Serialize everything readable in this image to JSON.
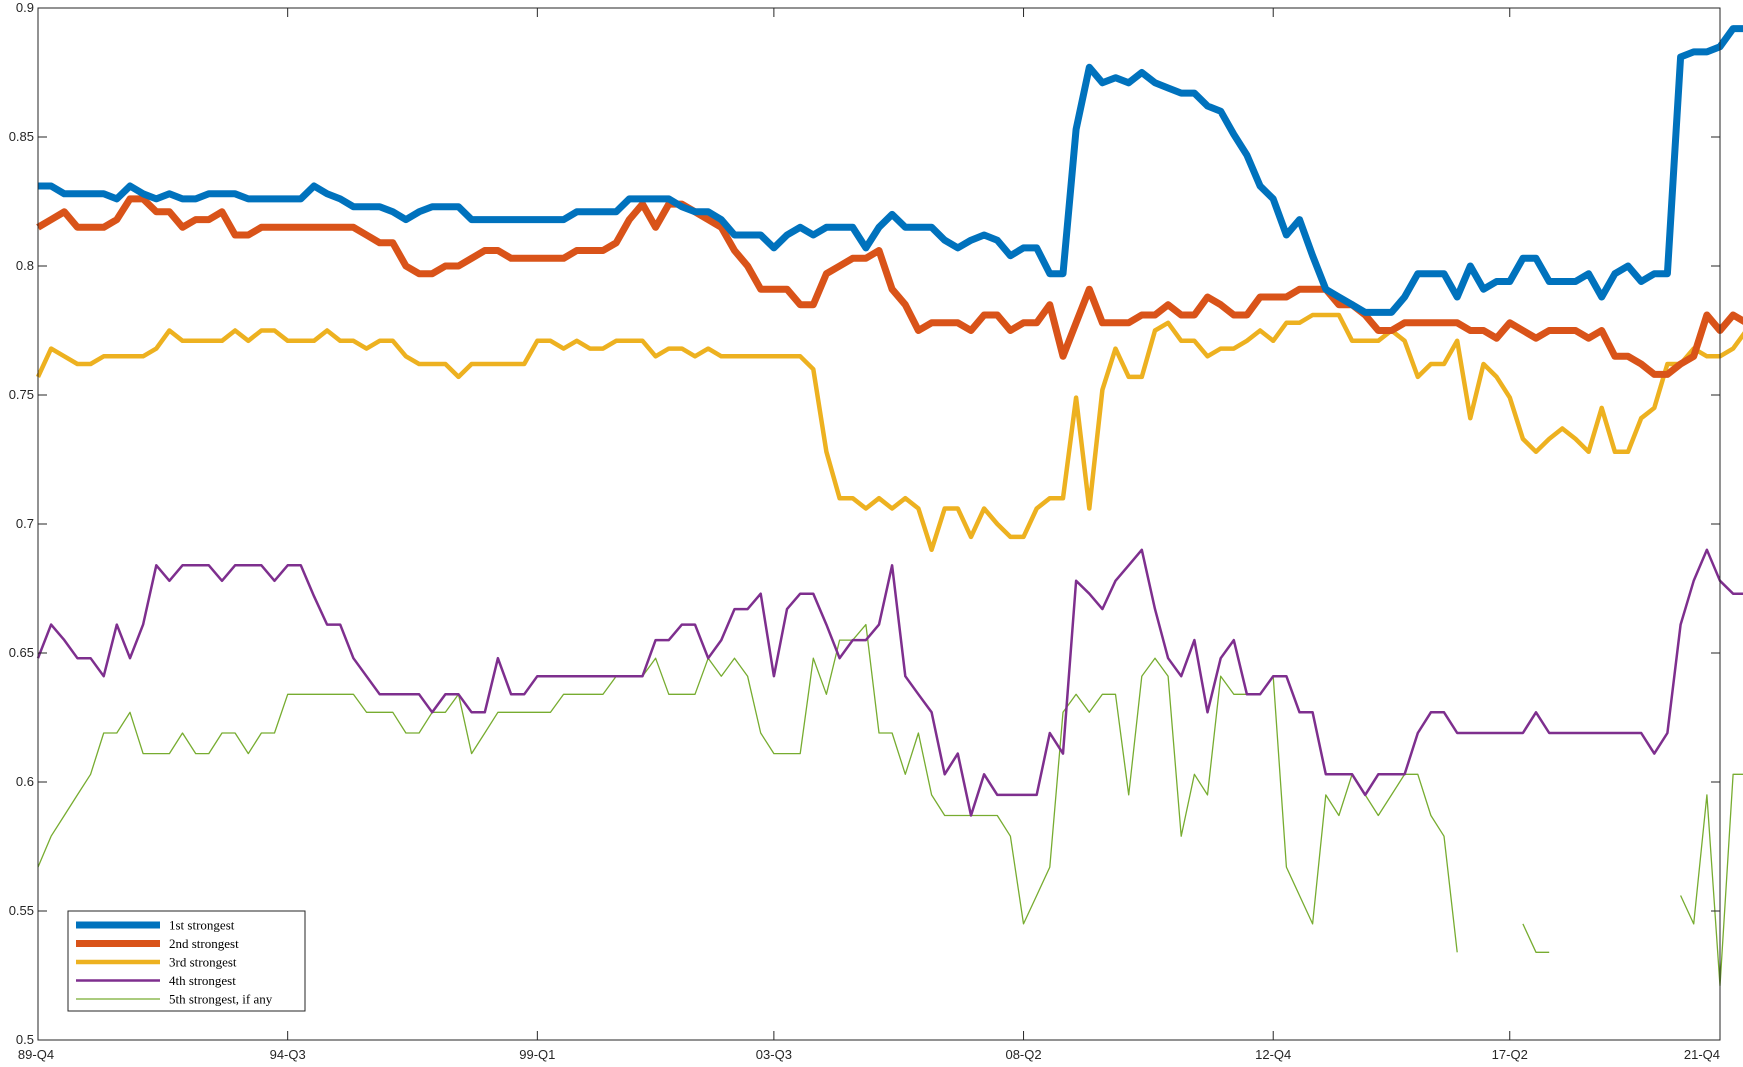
{
  "chart_data": {
    "type": "line",
    "title": "",
    "xlabel": "",
    "ylabel": "",
    "ylim": [
      0.5,
      0.9
    ],
    "yticks": [
      0.5,
      0.55,
      0.6,
      0.65,
      0.7,
      0.75,
      0.8,
      0.85,
      0.9
    ],
    "ytick_labels": [
      "0.5",
      "0.55",
      "0.6",
      "0.65",
      "0.7",
      "0.75",
      "0.8",
      "0.85",
      "0.9"
    ],
    "xlim": [
      0,
      128
    ],
    "xticks": [
      0,
      19,
      38,
      56,
      75,
      94,
      112,
      128
    ],
    "xtick_labels": [
      "89-Q4",
      "94-Q3",
      "99-Q1",
      "03-Q3",
      "08-Q2",
      "12-Q4",
      "17-Q2",
      "21-Q4"
    ],
    "grid": false,
    "legend_position": "bottom-left",
    "series": [
      {
        "name": "1st strongest",
        "color": "#0072BD",
        "width": "thick",
        "values": [
          0.831,
          0.831,
          0.828,
          0.828,
          0.828,
          0.828,
          0.826,
          0.831,
          0.828,
          0.826,
          0.828,
          0.826,
          0.826,
          0.828,
          0.828,
          0.828,
          0.826,
          0.826,
          0.826,
          0.826,
          0.826,
          0.831,
          0.828,
          0.826,
          0.823,
          0.823,
          0.823,
          0.821,
          0.818,
          0.821,
          0.823,
          0.823,
          0.823,
          0.818,
          0.818,
          0.818,
          0.818,
          0.818,
          0.818,
          0.818,
          0.818,
          0.821,
          0.821,
          0.821,
          0.821,
          0.826,
          0.826,
          0.826,
          0.826,
          0.823,
          0.821,
          0.821,
          0.818,
          0.812,
          0.812,
          0.812,
          0.807,
          0.812,
          0.815,
          0.812,
          0.815,
          0.815,
          0.815,
          0.807,
          0.815,
          0.82,
          0.815,
          0.815,
          0.815,
          0.81,
          0.807,
          0.81,
          0.812,
          0.81,
          0.804,
          0.807,
          0.807,
          0.797,
          0.797,
          0.853,
          0.877,
          0.871,
          0.873,
          0.871,
          0.875,
          0.871,
          0.869,
          0.867,
          0.867,
          0.862,
          0.86,
          0.851,
          0.843,
          0.831,
          0.826,
          0.812,
          0.818,
          0.804,
          0.791,
          0.788,
          0.785,
          0.782,
          0.782,
          0.782,
          0.788,
          0.797,
          0.797,
          0.797,
          0.788,
          0.8,
          0.791,
          0.794,
          0.794,
          0.803,
          0.803,
          0.794,
          0.794,
          0.794,
          0.797,
          0.788,
          0.797,
          0.8,
          0.794,
          0.797,
          0.797,
          0.881,
          0.883,
          0.883,
          0.885,
          0.892,
          0.892,
          0.892
        ]
      },
      {
        "name": "2nd strongest",
        "color": "#D95319",
        "width": "thick",
        "values": [
          0.815,
          0.818,
          0.821,
          0.815,
          0.815,
          0.815,
          0.818,
          0.826,
          0.826,
          0.821,
          0.821,
          0.815,
          0.818,
          0.818,
          0.821,
          0.812,
          0.812,
          0.815,
          0.815,
          0.815,
          0.815,
          0.815,
          0.815,
          0.815,
          0.815,
          0.812,
          0.809,
          0.809,
          0.8,
          0.797,
          0.797,
          0.8,
          0.8,
          0.803,
          0.806,
          0.806,
          0.803,
          0.803,
          0.803,
          0.803,
          0.803,
          0.806,
          0.806,
          0.806,
          0.809,
          0.818,
          0.824,
          0.815,
          0.824,
          0.824,
          0.821,
          0.818,
          0.815,
          0.806,
          0.8,
          0.791,
          0.791,
          0.791,
          0.785,
          0.785,
          0.797,
          0.8,
          0.803,
          0.803,
          0.806,
          0.791,
          0.785,
          0.775,
          0.778,
          0.778,
          0.778,
          0.775,
          0.781,
          0.781,
          0.775,
          0.778,
          0.778,
          0.785,
          0.765,
          0.778,
          0.791,
          0.778,
          0.778,
          0.778,
          0.781,
          0.781,
          0.785,
          0.781,
          0.781,
          0.788,
          0.785,
          0.781,
          0.781,
          0.788,
          0.788,
          0.788,
          0.791,
          0.791,
          0.791,
          0.785,
          0.785,
          0.781,
          0.775,
          0.775,
          0.778,
          0.778,
          0.778,
          0.778,
          0.778,
          0.775,
          0.775,
          0.772,
          0.778,
          0.775,
          0.772,
          0.775,
          0.775,
          0.775,
          0.772,
          0.775,
          0.765,
          0.765,
          0.762,
          0.758,
          0.758,
          0.762,
          0.765,
          0.781,
          0.775,
          0.781,
          0.778,
          0.778,
          0.778
        ]
      },
      {
        "name": "3rd strongest",
        "color": "#EDB120",
        "width": "medium",
        "values": [
          0.757,
          0.768,
          0.765,
          0.762,
          0.762,
          0.765,
          0.765,
          0.765,
          0.765,
          0.768,
          0.775,
          0.771,
          0.771,
          0.771,
          0.771,
          0.775,
          0.771,
          0.775,
          0.775,
          0.771,
          0.771,
          0.771,
          0.775,
          0.771,
          0.771,
          0.768,
          0.771,
          0.771,
          0.765,
          0.762,
          0.762,
          0.762,
          0.757,
          0.762,
          0.762,
          0.762,
          0.762,
          0.762,
          0.771,
          0.771,
          0.768,
          0.771,
          0.768,
          0.768,
          0.771,
          0.771,
          0.771,
          0.765,
          0.768,
          0.768,
          0.765,
          0.768,
          0.765,
          0.765,
          0.765,
          0.765,
          0.765,
          0.765,
          0.765,
          0.76,
          0.728,
          0.71,
          0.71,
          0.706,
          0.71,
          0.706,
          0.71,
          0.706,
          0.69,
          0.706,
          0.706,
          0.695,
          0.706,
          0.7,
          0.695,
          0.695,
          0.706,
          0.71,
          0.71,
          0.749,
          0.706,
          0.752,
          0.768,
          0.757,
          0.757,
          0.775,
          0.778,
          0.771,
          0.771,
          0.765,
          0.768,
          0.768,
          0.771,
          0.775,
          0.771,
          0.778,
          0.778,
          0.781,
          0.781,
          0.781,
          0.771,
          0.771,
          0.771,
          0.775,
          0.771,
          0.757,
          0.762,
          0.762,
          0.771,
          0.741,
          0.762,
          0.757,
          0.749,
          0.733,
          0.728,
          0.733,
          0.737,
          0.733,
          0.728,
          0.745,
          0.728,
          0.728,
          0.741,
          0.745,
          0.762,
          0.762,
          0.768,
          0.765,
          0.765,
          0.768,
          0.775,
          0.775
        ]
      },
      {
        "name": "4th strongest",
        "color": "#7E2F8E",
        "width": "thin",
        "values": [
          0.648,
          0.661,
          0.655,
          0.648,
          0.648,
          0.641,
          0.661,
          0.648,
          0.661,
          0.684,
          0.678,
          0.684,
          0.684,
          0.684,
          0.678,
          0.684,
          0.684,
          0.684,
          0.678,
          0.684,
          0.684,
          0.672,
          0.661,
          0.661,
          0.648,
          0.641,
          0.634,
          0.634,
          0.634,
          0.634,
          0.627,
          0.634,
          0.634,
          0.627,
          0.627,
          0.648,
          0.634,
          0.634,
          0.641,
          0.641,
          0.641,
          0.641,
          0.641,
          0.641,
          0.641,
          0.641,
          0.641,
          0.655,
          0.655,
          0.661,
          0.661,
          0.648,
          0.655,
          0.667,
          0.667,
          0.673,
          0.641,
          0.667,
          0.673,
          0.673,
          0.661,
          0.648,
          0.655,
          0.655,
          0.661,
          0.684,
          0.641,
          0.634,
          0.627,
          0.603,
          0.611,
          0.587,
          0.603,
          0.595,
          0.595,
          0.595,
          0.595,
          0.619,
          0.611,
          0.678,
          0.673,
          0.667,
          0.678,
          0.684,
          0.69,
          0.667,
          0.648,
          0.641,
          0.655,
          0.627,
          0.648,
          0.655,
          0.634,
          0.634,
          0.641,
          0.641,
          0.627,
          0.627,
          0.603,
          0.603,
          0.603,
          0.595,
          0.603,
          0.603,
          0.603,
          0.619,
          0.627,
          0.627,
          0.619,
          0.619,
          0.619,
          0.619,
          0.619,
          0.619,
          0.627,
          0.619,
          0.619,
          0.619,
          0.619,
          0.619,
          0.619,
          0.619,
          0.619,
          0.611,
          0.619,
          0.661,
          0.678,
          0.69,
          0.678,
          0.673,
          0.673,
          0.667
        ]
      },
      {
        "name": "5th strongest, if any",
        "color": "#77AC30",
        "width": "hairline",
        "values": [
          0.567,
          0.579,
          0.587,
          0.595,
          0.603,
          0.619,
          0.619,
          0.627,
          0.611,
          0.611,
          0.611,
          0.619,
          0.611,
          0.611,
          0.619,
          0.619,
          0.611,
          0.619,
          0.619,
          0.634,
          0.634,
          0.634,
          0.634,
          0.634,
          0.634,
          0.627,
          0.627,
          0.627,
          0.619,
          0.619,
          0.627,
          0.627,
          0.634,
          0.611,
          0.619,
          0.627,
          0.627,
          0.627,
          0.627,
          0.627,
          0.634,
          0.634,
          0.634,
          0.634,
          0.641,
          0.641,
          0.641,
          0.648,
          0.634,
          0.634,
          0.634,
          0.648,
          0.641,
          0.648,
          0.641,
          0.619,
          0.611,
          0.611,
          0.611,
          0.648,
          0.634,
          0.655,
          0.655,
          0.661,
          0.619,
          0.619,
          0.603,
          0.619,
          0.595,
          0.587,
          0.587,
          0.587,
          0.587,
          0.587,
          0.579,
          0.545,
          0.556,
          0.567,
          0.627,
          0.634,
          0.627,
          0.634,
          0.634,
          0.595,
          0.641,
          0.648,
          0.641,
          0.579,
          0.603,
          0.595,
          0.641,
          0.634,
          0.634,
          0.634,
          0.641,
          0.567,
          0.556,
          0.545,
          0.595,
          0.587,
          0.603,
          0.595,
          0.587,
          0.595,
          0.603,
          0.603,
          0.587,
          0.579,
          0.534,
          null,
          null,
          null,
          null,
          0.545,
          0.534,
          0.534,
          null,
          null,
          null,
          null,
          null,
          null,
          null,
          null,
          null,
          0.556,
          0.545,
          0.595,
          0.521,
          0.603,
          0.603,
          0.567,
          0.556,
          0.567
        ]
      }
    ]
  }
}
